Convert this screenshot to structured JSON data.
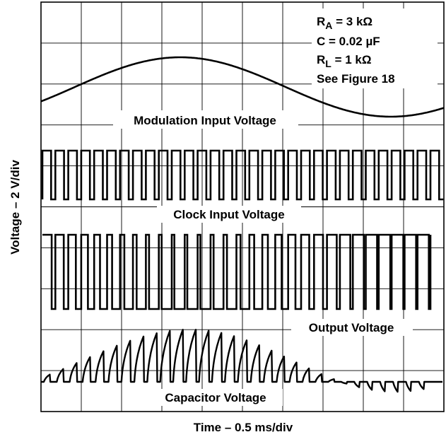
{
  "chart_data": {
    "type": "line",
    "title": "",
    "xlabel": "Time – 0.5 ms/div",
    "ylabel": "Voltage – 2 V/div",
    "grid": true,
    "grid_divisions": {
      "x": 10,
      "y": 10
    },
    "annotations": {
      "ra": {
        "main": "R",
        "sub": "A",
        "rest": " = 3 kΩ"
      },
      "cap": "C = 0.02 µF",
      "rl": {
        "main": "R",
        "sub": "L",
        "rest": " = 1 kΩ"
      },
      "fig": "See Figure 18"
    },
    "series": [
      {
        "name": "Modulation Input Voltage"
      },
      {
        "name": "Clock Input Voltage"
      },
      {
        "name": "Output Voltage"
      },
      {
        "name": "Capacitor Voltage"
      }
    ]
  }
}
